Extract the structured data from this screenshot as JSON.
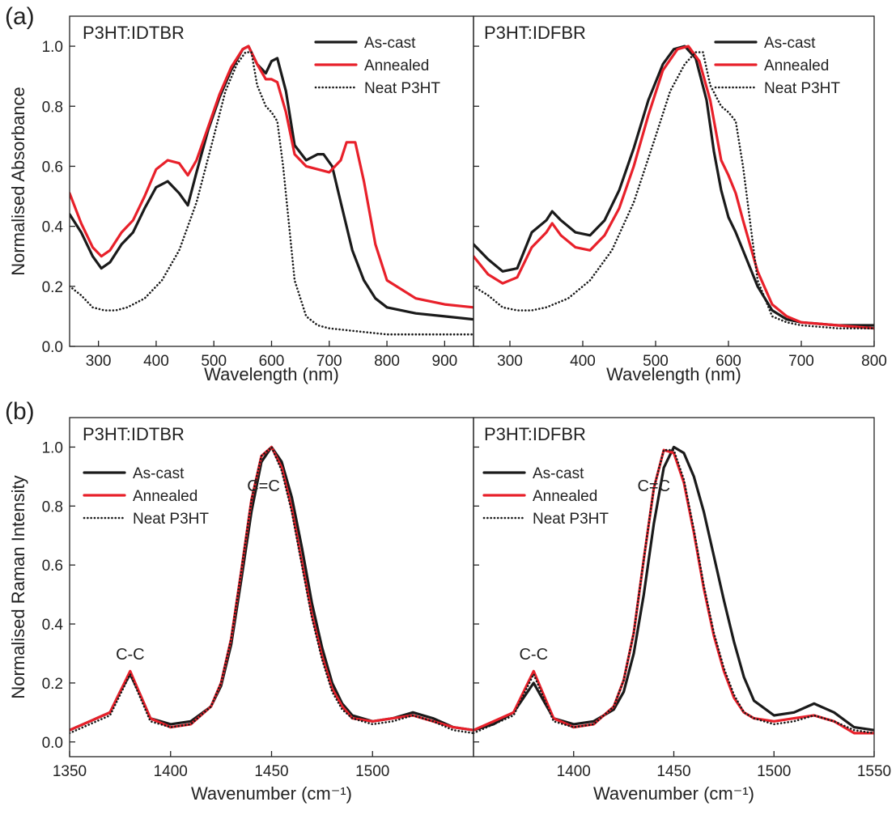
{
  "figure": {
    "panel_tags": [
      "(a)",
      "(b)"
    ],
    "colors": {
      "as_cast": "#1a1a1a",
      "annealed": "#e8202a",
      "neat": "#1a1a1a"
    }
  },
  "chart_data": [
    {
      "type": "line",
      "panel": "(a)",
      "title": "P3HT:IDTBR",
      "xlabel": "Wavelength (nm)",
      "ylabel": "Normalised Absorbance",
      "xlim": [
        250,
        950
      ],
      "ylim": [
        0,
        1.1
      ],
      "xticks": [
        300,
        400,
        500,
        600,
        700,
        800,
        900
      ],
      "yticks": [
        0.0,
        0.2,
        0.4,
        0.6,
        0.8,
        1.0
      ],
      "ytick_labels": [
        "0.0",
        "0.2",
        "0.4",
        "0.6",
        "0.8",
        "1.0"
      ],
      "legend": "top-right",
      "series": [
        {
          "name": "As-cast",
          "style": "solid",
          "color": "#1a1a1a",
          "x": [
            250,
            270,
            290,
            305,
            320,
            340,
            360,
            380,
            400,
            420,
            440,
            455,
            470,
            490,
            510,
            530,
            550,
            560,
            575,
            590,
            600,
            610,
            625,
            640,
            660,
            680,
            690,
            705,
            720,
            740,
            760,
            780,
            800,
            850,
            900,
            950
          ],
          "y": [
            0.44,
            0.38,
            0.3,
            0.26,
            0.28,
            0.34,
            0.38,
            0.46,
            0.53,
            0.55,
            0.51,
            0.47,
            0.58,
            0.72,
            0.83,
            0.92,
            0.99,
            1.0,
            0.94,
            0.91,
            0.95,
            0.96,
            0.85,
            0.67,
            0.62,
            0.64,
            0.64,
            0.6,
            0.48,
            0.32,
            0.22,
            0.16,
            0.13,
            0.11,
            0.1,
            0.09
          ]
        },
        {
          "name": "Annealed",
          "style": "solid",
          "color": "#e8202a",
          "x": [
            250,
            270,
            290,
            305,
            320,
            340,
            360,
            380,
            400,
            420,
            440,
            455,
            470,
            490,
            510,
            530,
            550,
            560,
            575,
            590,
            600,
            610,
            625,
            640,
            660,
            680,
            700,
            720,
            730,
            745,
            760,
            780,
            800,
            850,
            900,
            950
          ],
          "y": [
            0.51,
            0.41,
            0.33,
            0.3,
            0.32,
            0.38,
            0.42,
            0.5,
            0.59,
            0.62,
            0.61,
            0.57,
            0.62,
            0.73,
            0.84,
            0.93,
            0.99,
            1.0,
            0.94,
            0.89,
            0.89,
            0.88,
            0.78,
            0.64,
            0.6,
            0.59,
            0.58,
            0.62,
            0.68,
            0.68,
            0.55,
            0.34,
            0.22,
            0.16,
            0.14,
            0.13
          ]
        },
        {
          "name": "Neat P3HT",
          "style": "dotted",
          "color": "#1a1a1a",
          "x": [
            250,
            270,
            290,
            310,
            330,
            350,
            380,
            410,
            440,
            470,
            500,
            520,
            540,
            555,
            565,
            575,
            590,
            600,
            610,
            620,
            640,
            660,
            680,
            700,
            750,
            800,
            850,
            900,
            950
          ],
          "y": [
            0.2,
            0.17,
            0.13,
            0.12,
            0.12,
            0.13,
            0.16,
            0.22,
            0.32,
            0.48,
            0.7,
            0.85,
            0.94,
            0.98,
            0.98,
            0.87,
            0.8,
            0.78,
            0.75,
            0.6,
            0.22,
            0.1,
            0.07,
            0.06,
            0.05,
            0.04,
            0.04,
            0.04,
            0.04
          ]
        }
      ]
    },
    {
      "type": "line",
      "panel": "(a)",
      "title": "P3HT:IDFBR",
      "xlabel": "Wavelength (nm)",
      "ylabel": "",
      "xlim": [
        250,
        800
      ],
      "ylim": [
        0,
        1.1
      ],
      "xticks": [
        300,
        400,
        500,
        600,
        700,
        800
      ],
      "yticks": [
        0.0,
        0.2,
        0.4,
        0.6,
        0.8,
        1.0
      ],
      "legend": "top-right",
      "series": [
        {
          "name": "As-cast",
          "style": "solid",
          "color": "#1a1a1a",
          "x": [
            250,
            270,
            290,
            310,
            330,
            350,
            358,
            370,
            390,
            410,
            430,
            450,
            470,
            490,
            510,
            525,
            540,
            555,
            570,
            580,
            590,
            600,
            610,
            620,
            640,
            660,
            680,
            700,
            750,
            800
          ],
          "y": [
            0.34,
            0.29,
            0.25,
            0.26,
            0.38,
            0.42,
            0.45,
            0.42,
            0.38,
            0.37,
            0.42,
            0.52,
            0.66,
            0.82,
            0.94,
            0.99,
            1.0,
            0.96,
            0.82,
            0.65,
            0.52,
            0.43,
            0.38,
            0.32,
            0.2,
            0.12,
            0.09,
            0.08,
            0.07,
            0.07
          ]
        },
        {
          "name": "Annealed",
          "style": "solid",
          "color": "#e8202a",
          "x": [
            250,
            270,
            290,
            310,
            330,
            350,
            358,
            370,
            390,
            410,
            430,
            450,
            470,
            490,
            510,
            530,
            545,
            560,
            575,
            590,
            600,
            610,
            620,
            640,
            660,
            680,
            700,
            750,
            800
          ],
          "y": [
            0.3,
            0.24,
            0.21,
            0.23,
            0.33,
            0.38,
            0.41,
            0.37,
            0.33,
            0.32,
            0.37,
            0.46,
            0.6,
            0.77,
            0.92,
            0.99,
            1.0,
            0.95,
            0.82,
            0.62,
            0.57,
            0.51,
            0.42,
            0.25,
            0.14,
            0.1,
            0.08,
            0.07,
            0.06
          ]
        },
        {
          "name": "Neat P3HT",
          "style": "dotted",
          "color": "#1a1a1a",
          "x": [
            250,
            270,
            290,
            310,
            330,
            350,
            380,
            410,
            440,
            470,
            500,
            520,
            540,
            555,
            565,
            575,
            590,
            600,
            610,
            620,
            640,
            660,
            680,
            700,
            750,
            800
          ],
          "y": [
            0.2,
            0.17,
            0.13,
            0.12,
            0.12,
            0.13,
            0.16,
            0.22,
            0.32,
            0.48,
            0.7,
            0.85,
            0.94,
            0.98,
            0.98,
            0.87,
            0.8,
            0.78,
            0.75,
            0.6,
            0.22,
            0.1,
            0.08,
            0.07,
            0.06,
            0.06
          ]
        }
      ]
    },
    {
      "type": "line",
      "panel": "(b)",
      "title": "P3HT:IDTBR",
      "xlabel": "Wavenumber (cm⁻¹)",
      "ylabel": "Normalised Raman Intensity",
      "xlim": [
        1350,
        1550
      ],
      "ylim": [
        -0.05,
        1.1
      ],
      "xticks": [
        1350,
        1400,
        1450,
        1500
      ],
      "yticks": [
        0.0,
        0.2,
        0.4,
        0.6,
        0.8,
        1.0
      ],
      "ytick_labels": [
        "0.0",
        "0.2",
        "0.4",
        "0.6",
        "0.8",
        "1.0"
      ],
      "legend": "top-left",
      "annotations": [
        {
          "text": "C-C",
          "x": 1380,
          "y": 0.28
        },
        {
          "text": "C=C",
          "x": 1446,
          "y": 0.85
        }
      ],
      "series": [
        {
          "name": "As-cast",
          "style": "solid",
          "color": "#1a1a1a",
          "x": [
            1350,
            1360,
            1370,
            1375,
            1380,
            1385,
            1390,
            1400,
            1410,
            1420,
            1425,
            1430,
            1435,
            1440,
            1445,
            1450,
            1455,
            1460,
            1465,
            1470,
            1475,
            1480,
            1485,
            1490,
            1500,
            1510,
            1520,
            1530,
            1540,
            1550
          ],
          "y": [
            0.04,
            0.07,
            0.1,
            0.17,
            0.23,
            0.16,
            0.08,
            0.06,
            0.07,
            0.12,
            0.19,
            0.33,
            0.55,
            0.78,
            0.95,
            1.0,
            0.95,
            0.83,
            0.66,
            0.47,
            0.32,
            0.2,
            0.13,
            0.09,
            0.07,
            0.08,
            0.1,
            0.08,
            0.05,
            0.04
          ]
        },
        {
          "name": "Annealed",
          "style": "solid",
          "color": "#e8202a",
          "x": [
            1350,
            1360,
            1370,
            1375,
            1380,
            1385,
            1390,
            1400,
            1410,
            1420,
            1425,
            1430,
            1435,
            1440,
            1445,
            1450,
            1455,
            1460,
            1465,
            1470,
            1475,
            1480,
            1485,
            1490,
            1500,
            1510,
            1520,
            1530,
            1540,
            1550
          ],
          "y": [
            0.04,
            0.07,
            0.1,
            0.17,
            0.24,
            0.16,
            0.08,
            0.05,
            0.06,
            0.12,
            0.2,
            0.35,
            0.58,
            0.82,
            0.97,
            1.0,
            0.93,
            0.79,
            0.61,
            0.43,
            0.29,
            0.18,
            0.12,
            0.08,
            0.07,
            0.08,
            0.09,
            0.07,
            0.05,
            0.04
          ]
        },
        {
          "name": "Neat P3HT",
          "style": "dotted",
          "color": "#1a1a1a",
          "x": [
            1350,
            1360,
            1370,
            1375,
            1380,
            1385,
            1390,
            1400,
            1410,
            1420,
            1425,
            1430,
            1435,
            1440,
            1445,
            1450,
            1455,
            1460,
            1465,
            1470,
            1475,
            1480,
            1485,
            1490,
            1500,
            1510,
            1520,
            1530,
            1540,
            1550
          ],
          "y": [
            0.03,
            0.06,
            0.09,
            0.16,
            0.23,
            0.15,
            0.07,
            0.05,
            0.06,
            0.12,
            0.2,
            0.35,
            0.58,
            0.82,
            0.97,
            1.0,
            0.92,
            0.78,
            0.6,
            0.42,
            0.28,
            0.17,
            0.11,
            0.08,
            0.06,
            0.07,
            0.09,
            0.07,
            0.04,
            0.03
          ]
        }
      ]
    },
    {
      "type": "line",
      "panel": "(b)",
      "title": "P3HT:IDFBR",
      "xlabel": "Wavenumber (cm⁻¹)",
      "ylabel": "",
      "xlim": [
        1350,
        1550
      ],
      "ylim": [
        -0.05,
        1.1
      ],
      "xticks": [
        1400,
        1450,
        1500,
        1550
      ],
      "yticks": [
        0.0,
        0.2,
        0.4,
        0.6,
        0.8,
        1.0
      ],
      "legend": "top-left",
      "annotations": [
        {
          "text": "C-C",
          "x": 1380,
          "y": 0.28
        },
        {
          "text": "C=C",
          "x": 1440,
          "y": 0.85
        }
      ],
      "series": [
        {
          "name": "As-cast",
          "style": "solid",
          "color": "#1a1a1a",
          "x": [
            1350,
            1360,
            1370,
            1375,
            1380,
            1385,
            1390,
            1400,
            1410,
            1420,
            1425,
            1430,
            1435,
            1440,
            1445,
            1450,
            1455,
            1460,
            1465,
            1470,
            1475,
            1480,
            1485,
            1490,
            1500,
            1510,
            1520,
            1530,
            1540,
            1550
          ],
          "y": [
            0.04,
            0.06,
            0.1,
            0.15,
            0.2,
            0.14,
            0.08,
            0.06,
            0.07,
            0.11,
            0.17,
            0.3,
            0.5,
            0.74,
            0.93,
            1.0,
            0.98,
            0.9,
            0.78,
            0.63,
            0.48,
            0.34,
            0.22,
            0.14,
            0.09,
            0.1,
            0.13,
            0.1,
            0.05,
            0.04
          ]
        },
        {
          "name": "Annealed",
          "style": "solid",
          "color": "#e8202a",
          "x": [
            1350,
            1360,
            1370,
            1375,
            1380,
            1385,
            1390,
            1400,
            1410,
            1420,
            1425,
            1430,
            1435,
            1440,
            1445,
            1450,
            1455,
            1460,
            1465,
            1470,
            1475,
            1480,
            1485,
            1490,
            1500,
            1510,
            1520,
            1530,
            1540,
            1550
          ],
          "y": [
            0.04,
            0.07,
            0.1,
            0.17,
            0.24,
            0.16,
            0.08,
            0.05,
            0.06,
            0.12,
            0.21,
            0.37,
            0.62,
            0.86,
            0.99,
            0.98,
            0.88,
            0.71,
            0.52,
            0.36,
            0.24,
            0.15,
            0.1,
            0.08,
            0.07,
            0.08,
            0.09,
            0.07,
            0.03,
            0.03
          ]
        },
        {
          "name": "Neat P3HT",
          "style": "dotted",
          "color": "#1a1a1a",
          "x": [
            1350,
            1360,
            1370,
            1375,
            1380,
            1385,
            1390,
            1400,
            1410,
            1420,
            1425,
            1430,
            1435,
            1440,
            1445,
            1450,
            1455,
            1460,
            1465,
            1470,
            1475,
            1480,
            1485,
            1490,
            1500,
            1510,
            1520,
            1530,
            1540,
            1550
          ],
          "y": [
            0.03,
            0.06,
            0.09,
            0.16,
            0.23,
            0.15,
            0.07,
            0.05,
            0.06,
            0.12,
            0.21,
            0.37,
            0.62,
            0.86,
            0.99,
            0.99,
            0.89,
            0.72,
            0.53,
            0.37,
            0.25,
            0.16,
            0.1,
            0.08,
            0.06,
            0.07,
            0.09,
            0.07,
            0.04,
            0.03
          ]
        }
      ]
    }
  ]
}
